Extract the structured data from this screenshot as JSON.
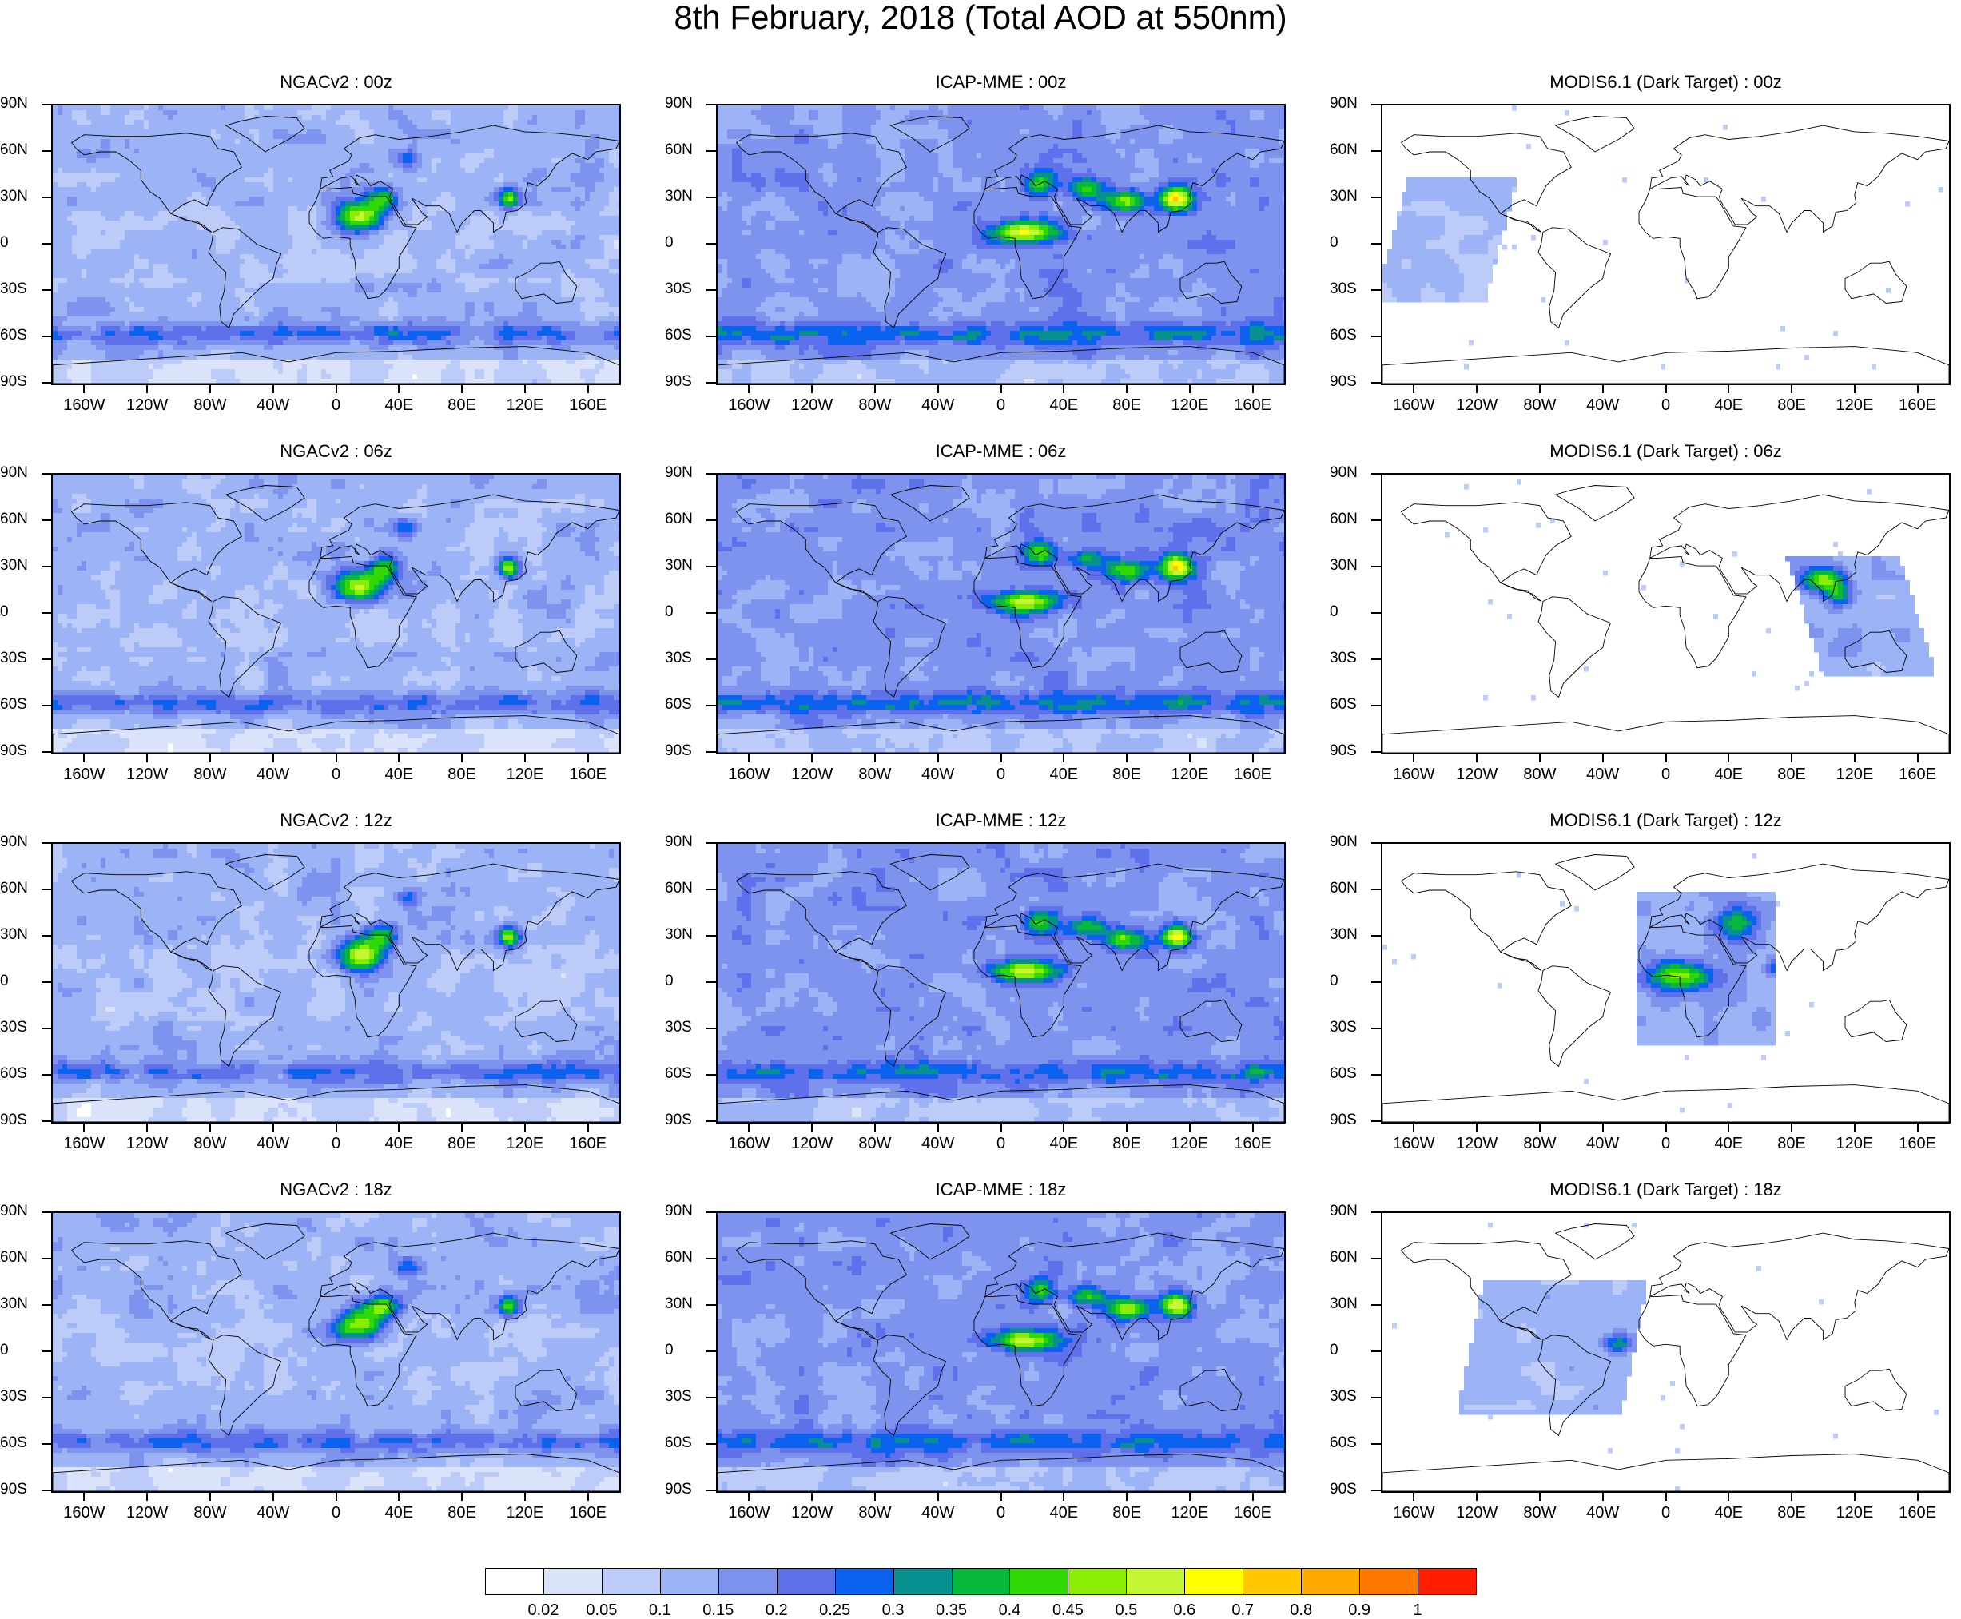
{
  "title": "8th February, 2018 (Total AOD at 550nm)",
  "lat_labels": [
    "90N",
    "60N",
    "30N",
    "0",
    "30S",
    "60S",
    "90S"
  ],
  "lon_labels": [
    "160W",
    "120W",
    "80W",
    "40W",
    "0",
    "40E",
    "80E",
    "120E",
    "160E"
  ],
  "lon_values": [
    -160,
    -120,
    -80,
    -40,
    0,
    40,
    80,
    120,
    160
  ],
  "columns": [
    {
      "model": "NGACv2",
      "type": "model"
    },
    {
      "model": "ICAP-MME",
      "type": "model"
    },
    {
      "model": "MODIS6.1 (Dark Target)",
      "type": "satellite"
    }
  ],
  "panels": [
    {
      "title": "NGACv2 : 00z",
      "row": 0,
      "col": 0
    },
    {
      "title": "ICAP-MME : 00z",
      "row": 0,
      "col": 1
    },
    {
      "title": "MODIS6.1 (Dark Target) : 00z",
      "row": 0,
      "col": 2
    },
    {
      "title": "NGACv2 : 06z",
      "row": 1,
      "col": 0
    },
    {
      "title": "ICAP-MME : 06z",
      "row": 1,
      "col": 1
    },
    {
      "title": "MODIS6.1 (Dark Target) : 06z",
      "row": 1,
      "col": 2
    },
    {
      "title": "NGACv2 : 12z",
      "row": 2,
      "col": 0
    },
    {
      "title": "ICAP-MME : 12z",
      "row": 2,
      "col": 1
    },
    {
      "title": "MODIS6.1 (Dark Target) : 12z",
      "row": 2,
      "col": 2
    },
    {
      "title": "NGACv2 : 18z",
      "row": 3,
      "col": 0
    },
    {
      "title": "ICAP-MME : 18z",
      "row": 3,
      "col": 1
    },
    {
      "title": "MODIS6.1 (Dark Target) : 18z",
      "row": 3,
      "col": 2
    }
  ],
  "colorbar": {
    "levels": [
      "0.02",
      "0.05",
      "0.1",
      "0.15",
      "0.2",
      "0.25",
      "0.3",
      "0.35",
      "0.4",
      "0.45",
      "0.5",
      "0.6",
      "0.7",
      "0.8",
      "0.9",
      "1"
    ],
    "colors": [
      "#ffffff",
      "#dbe3fb",
      "#bccbf8",
      "#9cb3f5",
      "#7e93ee",
      "#5f71ea",
      "#0a62ee",
      "#089090",
      "#06b83c",
      "#30d806",
      "#8bec06",
      "#c4f633",
      "#ffff00",
      "#ffc800",
      "#ffaa00",
      "#ff7800",
      "#ff1e00"
    ]
  },
  "map": {
    "projection": "cylindrical-equidistant",
    "lon_range": [
      -180,
      180
    ],
    "lat_range": [
      -90,
      90
    ],
    "variable": "Total AOD at 550nm",
    "date": "8th February, 2018"
  }
}
